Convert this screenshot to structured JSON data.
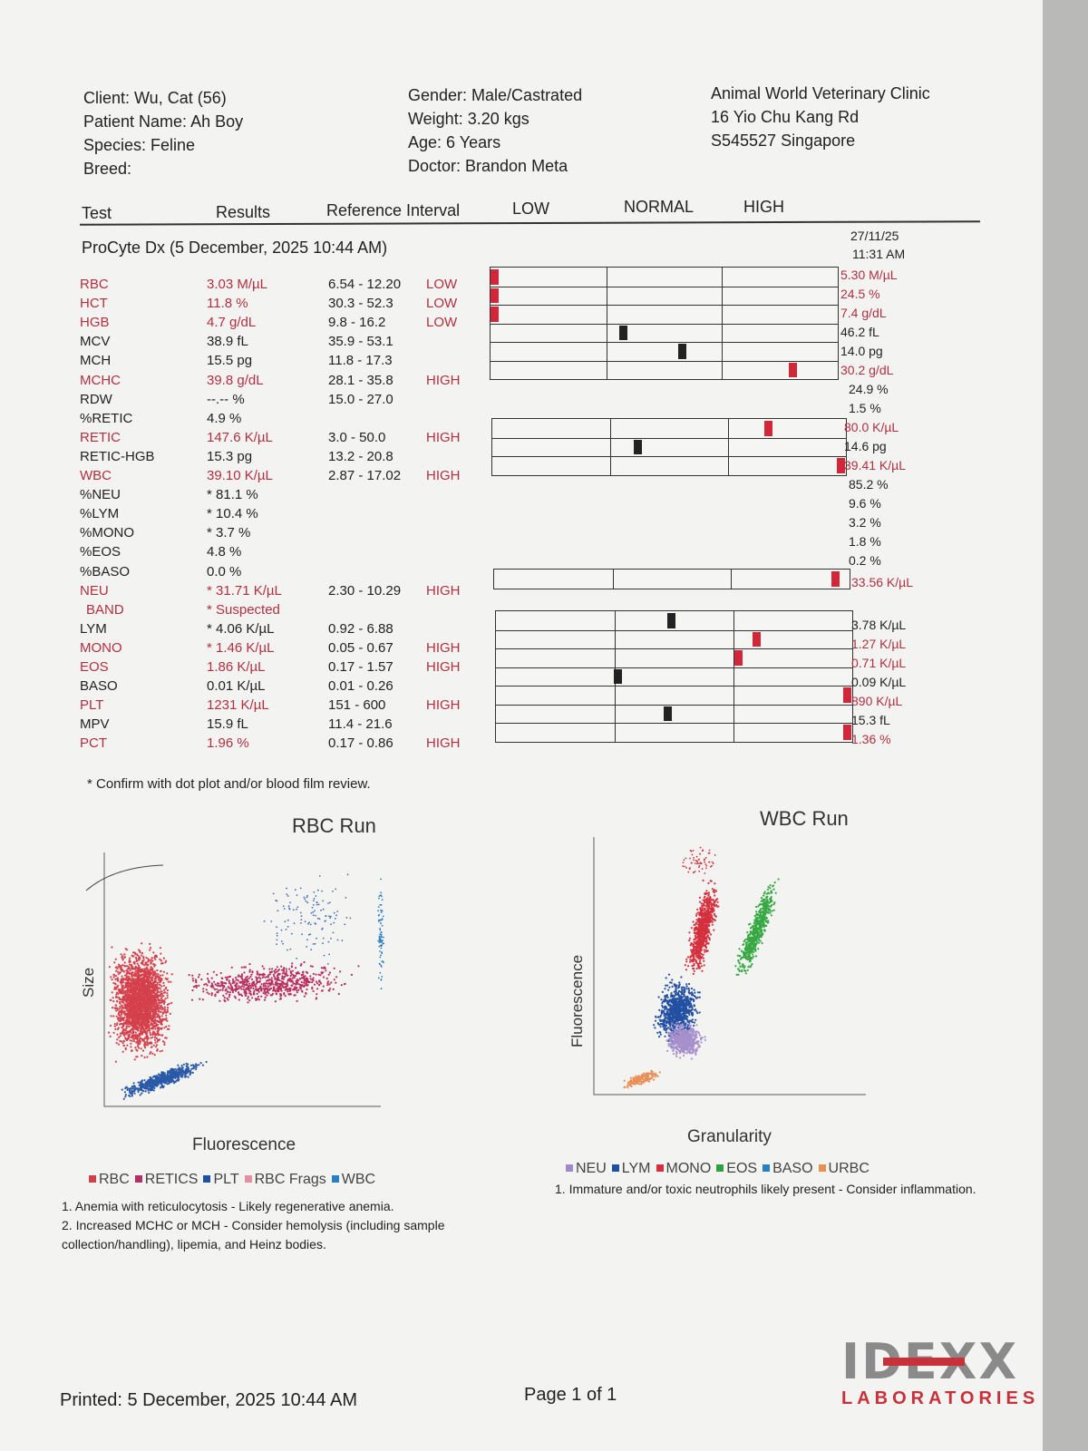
{
  "header": {
    "client": "Client: Wu, Cat (56)",
    "patient": "Patient Name: Ah Boy",
    "species": "Species: Feline",
    "breed": "Breed:",
    "gender": "Gender: Male/Castrated",
    "weight": "Weight: 3.20 kgs",
    "age": "Age: 6 Years",
    "doctor": "Doctor: Brandon Meta",
    "clinic_name": "Animal World Veterinary Clinic",
    "clinic_addr1": "16 Yio Chu Kang Rd",
    "clinic_addr2": "S545527 Singapore"
  },
  "columns": {
    "test": "Test",
    "results": "Results",
    "ref": "Reference Interval",
    "low": "LOW",
    "normal": "NORMAL",
    "high": "HIGH"
  },
  "run": {
    "title": "ProCyte Dx (5 December, 2025 10:44 AM)",
    "prev_date": "27/11/25",
    "prev_time": "11:31 AM"
  },
  "rows": [
    {
      "test": "RBC",
      "result": "3.03 M/µL",
      "ref": "6.54 - 12.20",
      "flag": "LOW",
      "prev": "5.30 M/µL",
      "status": "low",
      "pos": 0
    },
    {
      "test": "HCT",
      "result": "11.8 %",
      "ref": "30.3 - 52.3",
      "flag": "LOW",
      "prev": "24.5 %",
      "status": "low",
      "pos": 0
    },
    {
      "test": "HGB",
      "result": "4.7 g/dL",
      "ref": "9.8 - 16.2",
      "flag": "LOW",
      "prev": "7.4 g/dL",
      "status": "low",
      "pos": 0
    },
    {
      "test": "MCV",
      "result": "38.9 fL",
      "ref": "35.9 - 53.1",
      "flag": "",
      "prev": "46.2 fL",
      "status": "normal",
      "pos": 0.38
    },
    {
      "test": "MCH",
      "result": "15.5 pg",
      "ref": "11.8 - 17.3",
      "flag": "",
      "prev": "14.0 pg",
      "status": "normal",
      "pos": 0.55
    },
    {
      "test": "MCHC",
      "result": "39.8 g/dL",
      "ref": "28.1 - 35.8",
      "flag": "HIGH",
      "prev": "30.2 g/dL",
      "status": "high",
      "pos": 0.87
    },
    {
      "test": "RDW",
      "result": "--.-- %",
      "ref": "15.0 - 27.0",
      "flag": "",
      "prev": "24.9 %",
      "status": "normal",
      "pos": null
    },
    {
      "test": "%RETIC",
      "result": "4.9 %",
      "ref": "",
      "flag": "",
      "prev": "1.5 %",
      "status": "normal",
      "pos": null
    },
    {
      "test": "RETIC",
      "result": "147.6 K/µL",
      "ref": "3.0 - 50.0",
      "flag": "HIGH",
      "prev": "80.0 K/µL",
      "status": "high",
      "pos": 0.78
    },
    {
      "test": "RETIC-HGB",
      "result": "15.3 pg",
      "ref": "13.2 - 20.8",
      "flag": "",
      "prev": "14.6 pg",
      "status": "normal",
      "pos": 0.41
    },
    {
      "test": "WBC",
      "result": "39.10 K/µL",
      "ref": "2.87 - 17.02",
      "flag": "HIGH",
      "prev": "39.41 K/µL",
      "status": "high",
      "pos": 0.99
    },
    {
      "test": "%NEU",
      "result": "* 81.1 %",
      "ref": "",
      "flag": "",
      "prev": "85.2 %",
      "status": "normal",
      "pos": null
    },
    {
      "test": "%LYM",
      "result": "* 10.4 %",
      "ref": "",
      "flag": "",
      "prev": "9.6 %",
      "status": "normal",
      "pos": null
    },
    {
      "test": "%MONO",
      "result": "* 3.7 %",
      "ref": "",
      "flag": "",
      "prev": "3.2 %",
      "status": "normal",
      "pos": null
    },
    {
      "test": "%EOS",
      "result": "4.8 %",
      "ref": "",
      "flag": "",
      "prev": "1.8 %",
      "status": "normal",
      "pos": null
    },
    {
      "test": "%BASO",
      "result": "0.0 %",
      "ref": "",
      "flag": "",
      "prev": "0.2 %",
      "status": "normal",
      "pos": null
    },
    {
      "test": "NEU",
      "result": "* 31.71 K/µL",
      "ref": "2.30 - 10.29",
      "flag": "HIGH",
      "prev": "33.56 K/µL",
      "status": "high",
      "pos": 0.96
    },
    {
      "test": "BAND",
      "result": "* Suspected",
      "ref": "",
      "flag": "",
      "prev": "",
      "status": "high",
      "pos": null
    },
    {
      "test": "LYM",
      "result": "* 4.06 K/µL",
      "ref": "0.92 - 6.88",
      "flag": "",
      "prev": "3.78 K/µL",
      "status": "normal",
      "pos": 0.49
    },
    {
      "test": "MONO",
      "result": "* 1.46 K/µL",
      "ref": "0.05 - 0.67",
      "flag": "HIGH",
      "prev": "1.27 K/µL",
      "status": "high",
      "pos": 0.73
    },
    {
      "test": "EOS",
      "result": "1.86 K/µL",
      "ref": "0.17 - 1.57",
      "flag": "HIGH",
      "prev": "0.71 K/µL",
      "status": "high",
      "pos": 0.68
    },
    {
      "test": "BASO",
      "result": "0.01 K/µL",
      "ref": "0.01 - 0.26",
      "flag": "",
      "prev": "0.09 K/µL",
      "status": "normal",
      "pos": 0.34
    },
    {
      "test": "PLT",
      "result": "1231 K/µL",
      "ref": "151 - 600",
      "flag": "HIGH",
      "prev": "890 K/µL",
      "status": "high",
      "pos": 0.99
    },
    {
      "test": "MPV",
      "result": "15.9 fL",
      "ref": "11.4 - 21.6",
      "flag": "",
      "prev": "15.3 fL",
      "status": "normal",
      "pos": 0.48
    },
    {
      "test": "PCT",
      "result": "1.96 %",
      "ref": "0.17 - 0.86",
      "flag": "HIGH",
      "prev": "1.36 %",
      "status": "high",
      "pos": 0.99
    }
  ],
  "confirm_note": "* Confirm with dot plot and/or blood film review.",
  "rbc_plot": {
    "title": "RBC Run",
    "xlabel": "Fluorescence",
    "ylabel": "Size",
    "legend": [
      "RBC",
      "RETICS",
      "PLT",
      "RBC Frags",
      "WBC"
    ],
    "legend_colors": [
      "#d0404a",
      "#b0306a",
      "#2050a0",
      "#e090a0",
      "#2a7fc0"
    ]
  },
  "wbc_plot": {
    "title": "WBC Run",
    "xlabel": "Granularity",
    "ylabel": "Fluorescence",
    "legend": [
      "NEU",
      "LYM",
      "MONO",
      "EOS",
      "BASO",
      "URBC"
    ],
    "legend_colors": [
      "#a08ac8",
      "#2050a0",
      "#d03040",
      "#30a040",
      "#2a7fc0",
      "#e89050"
    ]
  },
  "rbc_notes": [
    "1. Anemia with reticulocytosis - Likely regenerative anemia.",
    "2. Increased MCHC or MCH - Consider hemolysis (including sample",
    "collection/handling), lipemia, and Heinz bodies."
  ],
  "wbc_notes": [
    "1. Immature and/or toxic neutrophils likely present - Consider inflammation."
  ],
  "footer": {
    "printed": "Printed: 5 December, 2025 10:44 AM",
    "page": "Page 1 of 1",
    "logo_text": "IDEXX",
    "logo_sub": "LABORATORIES"
  },
  "colors": {
    "flag_red": "#b03040",
    "marker_red": "#d02838",
    "marker_black": "#222222"
  }
}
